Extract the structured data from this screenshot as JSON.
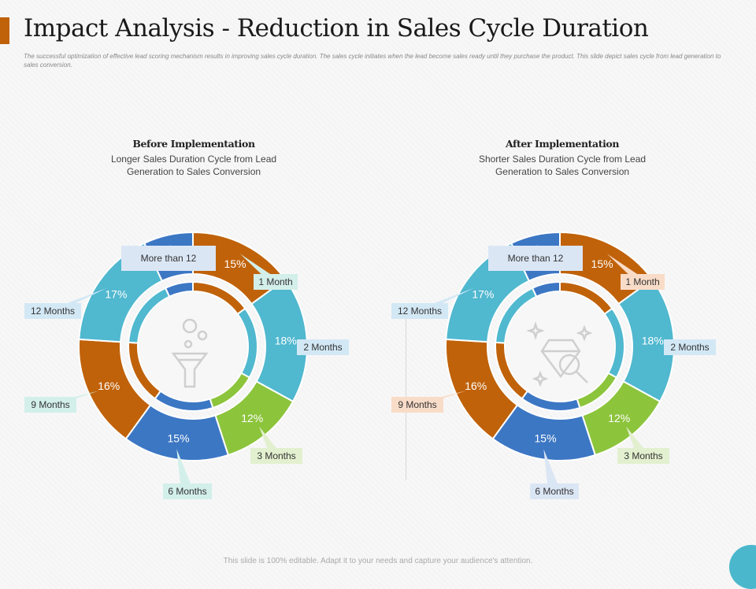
{
  "slide": {
    "title": "Impact Analysis - Reduction in Sales Cycle Duration",
    "description": "The successful optimization of effective lead scoring mechanism  results in improving  sales cycle duration. The  sales cycle initiates when the lead become  sales ready until they purchase the product. This  slide depict sales cycle from  lead generation to sales conversion.",
    "footer": "This slide is 100% editable. Adapt it to your needs and capture your audience's attention.",
    "accent_color": "#c0620a"
  },
  "before": {
    "heading": "Before Implementation",
    "subtitle_line1": "Longer Sales Duration Cycle from Lead",
    "subtitle_line2": "Generation to Sales Conversion",
    "icon": "funnel-icon"
  },
  "after": {
    "heading": "After Implementation",
    "subtitle_line1": "Shorter Sales Duration Cycle from Lead",
    "subtitle_line2": "Generation to Sales Conversion",
    "icon": "diamond-magnifier-icon"
  },
  "segments": [
    {
      "pct": "15%",
      "label": "1 Month",
      "color": "#c0620a"
    },
    {
      "pct": "18%",
      "label": "2 Months",
      "color": "#50b8cf"
    },
    {
      "pct": "12%",
      "label": "3 Months",
      "color": "#8cc43c"
    },
    {
      "pct": "15%",
      "label": "6 Months",
      "color": "#3c77c4"
    },
    {
      "pct": "16%",
      "label": "9 Months",
      "color": "#c0620a"
    },
    {
      "pct": "17%",
      "label": "12 Months",
      "color": "#50b8cf"
    },
    {
      "pct": "7%",
      "label": "More than 12",
      "color": "#3c77c4"
    }
  ],
  "label_colors": {
    "light_orange": "#f9dcc8",
    "light_blue": "#d3e8f5",
    "light_green": "#e3f0cf",
    "light_teal": "#d3efea",
    "light_lavender": "#dbe6f5"
  },
  "chart_data": [
    {
      "type": "pie",
      "title": "Before Implementation",
      "categories": [
        "1 Month",
        "2 Months",
        "3 Months",
        "6 Months",
        "9 Months",
        "12 Months",
        "More than 12"
      ],
      "values": [
        15,
        18,
        12,
        15,
        16,
        17,
        7
      ]
    },
    {
      "type": "pie",
      "title": "After Implementation",
      "categories": [
        "1 Month",
        "2 Months",
        "3 Months",
        "6 Months",
        "9 Months",
        "12 Months",
        "More than 12"
      ],
      "values": [
        15,
        18,
        12,
        15,
        16,
        17,
        7
      ]
    }
  ]
}
